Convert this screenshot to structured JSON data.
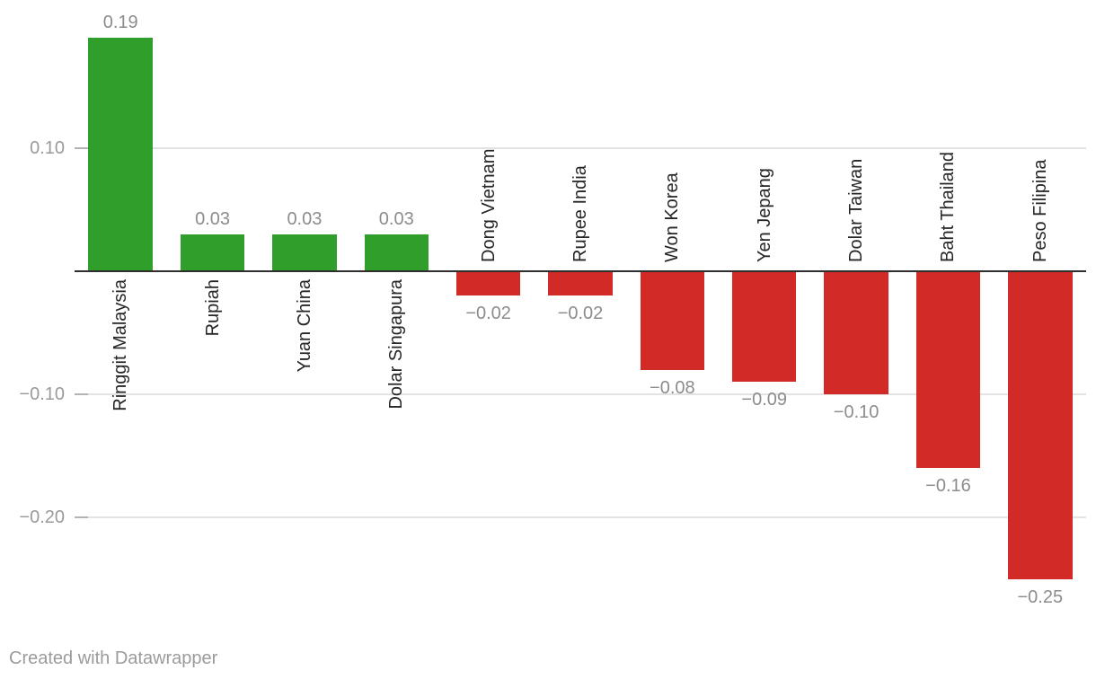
{
  "chart_data": {
    "type": "bar",
    "title": "",
    "categories": [
      "Ringgit Malaysia",
      "Rupiah",
      "Yuan China",
      "Dolar Singapura",
      "Dong Vietnam",
      "Rupee India",
      "Won Korea",
      "Yen Jepang",
      "Dolar Taiwan",
      "Baht Thailand",
      "Peso Filipina"
    ],
    "values": [
      0.19,
      0.03,
      0.03,
      0.03,
      -0.02,
      -0.02,
      -0.08,
      -0.09,
      -0.1,
      -0.16,
      -0.25
    ],
    "value_labels": [
      "0.19",
      "0.03",
      "0.03",
      "0.03",
      "−0.02",
      "−0.02",
      "−0.08",
      "−0.09",
      "−0.10",
      "−0.16",
      "−0.25"
    ],
    "xlabel": "",
    "ylabel": "",
    "ylim": [
      -0.27,
      0.21
    ],
    "grid": true,
    "legend": "none",
    "y_ticks": [
      {
        "value": 0.1,
        "label": "0.10"
      },
      {
        "value": -0.1,
        "label": "−0.10"
      },
      {
        "value": -0.2,
        "label": "−0.20"
      }
    ],
    "bar_colors": {
      "positive": "#2f9e2b",
      "negative": "#d22a26"
    }
  },
  "colors": {
    "background": "#ffffff",
    "axis_line": "#2e2e2e",
    "gridline": "#e3e3e3",
    "tick": "#b3b3b3",
    "tick_label": "#9a9a9a",
    "value_label": "#8c8c8c",
    "category_label": "#262626",
    "footer_text": "#9b9b9b"
  },
  "footer": {
    "credit": "Created with Datawrapper"
  }
}
